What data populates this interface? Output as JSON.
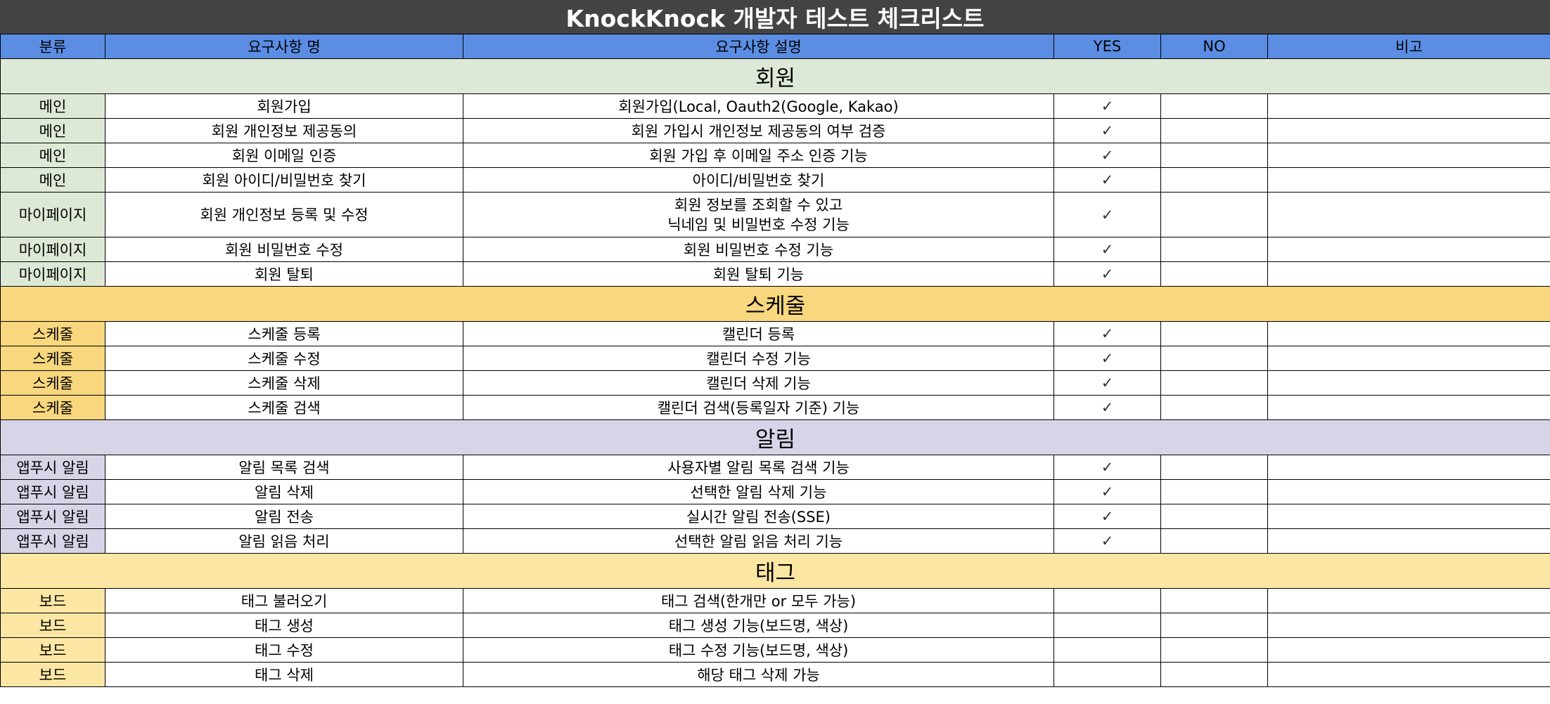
{
  "title": "KnockKnock 개발자 테스트 체크리스트",
  "headers": [
    "분류",
    "요구사항 명",
    "요구사항 설명",
    "YES",
    "NO",
    "비고"
  ],
  "check_mark": "✓",
  "colors": {
    "title_bg": "#434343",
    "header_bg": "#5b8de3",
    "member": "#dde9d6",
    "schedule": "#f8d77e",
    "alarm": "#d8d4e8",
    "tag": "#fbe7a3"
  },
  "sections": [
    {
      "name": "회원",
      "rows": [
        {
          "category": "메인",
          "name": "회원가입",
          "desc": "회원가입(Local, Oauth2(Google, Kakao)",
          "yes": "✓",
          "no": "",
          "note": ""
        },
        {
          "category": "메인",
          "name": "회원 개인정보 제공동의",
          "desc": "회원 가입시 개인정보 제공동의 여부 검증",
          "yes": "✓",
          "no": "",
          "note": ""
        },
        {
          "category": "메인",
          "name": "회원 이메일 인증",
          "desc": "회원 가입 후 이메일 주소 인증 기능",
          "yes": "✓",
          "no": "",
          "note": ""
        },
        {
          "category": "메인",
          "name": "회원 아이디/비밀번호 찾기",
          "desc": "아이디/비밀번호 찾기",
          "yes": "✓",
          "no": "",
          "note": ""
        },
        {
          "category": "마이페이지",
          "name": "회원 개인정보 등록 및 수정",
          "desc": "회원 정보를 조회할 수 있고",
          "desc2": "닉네임 및 비밀번호 수정 기능",
          "yes": "✓",
          "no": "",
          "note": ""
        },
        {
          "category": "마이페이지",
          "name": "회원 비밀번호 수정",
          "desc": "회원 비밀번호 수정 기능",
          "yes": "✓",
          "no": "",
          "note": ""
        },
        {
          "category": "마이페이지",
          "name": "회원 탈퇴",
          "desc": "회원  탈퇴 기능",
          "yes": "✓",
          "no": "",
          "note": ""
        }
      ]
    },
    {
      "name": "스케줄",
      "rows": [
        {
          "category": "스케줄",
          "name": "스케줄 등록",
          "desc": "캘린더 등록",
          "yes": "✓",
          "no": "",
          "note": ""
        },
        {
          "category": "스케줄",
          "name": "스케줄 수정",
          "desc": "캘린더 수정 기능",
          "yes": "✓",
          "no": "",
          "note": ""
        },
        {
          "category": "스케줄",
          "name": "스케줄 삭제",
          "desc": "캘린더 삭제 기능",
          "yes": "✓",
          "no": "",
          "note": ""
        },
        {
          "category": "스케줄",
          "name": "스케줄 검색",
          "desc": "캘린더 검색(등록일자 기준) 기능",
          "yes": "✓",
          "no": "",
          "note": ""
        }
      ]
    },
    {
      "name": "알림",
      "rows": [
        {
          "category": "앱푸시 알림",
          "name": "알림 목록 검색",
          "desc": "사용자별 알림 목록 검색 기능",
          "yes": "✓",
          "no": "",
          "note": ""
        },
        {
          "category": "앱푸시 알림",
          "name": "알림 삭제",
          "desc": "선택한 알림 삭제 기능",
          "yes": "✓",
          "no": "",
          "note": ""
        },
        {
          "category": "앱푸시 알림",
          "name": "알림 전송",
          "desc": "실시간 알림 전송(SSE)",
          "yes": "✓",
          "no": "",
          "note": ""
        },
        {
          "category": "앱푸시 알림",
          "name": "알림 읽음 처리",
          "desc": "선택한 알림 읽음 처리 기능",
          "yes": "✓",
          "no": "",
          "note": ""
        }
      ]
    },
    {
      "name": "태그",
      "rows": [
        {
          "category": "보드",
          "name": "태그 불러오기",
          "desc": "태그 검색(한개만 or 모두 가능)",
          "yes": "",
          "no": "",
          "note": ""
        },
        {
          "category": "보드",
          "name": "태그 생성",
          "desc": "태그 생성 기능(보드명, 색상)",
          "yes": "",
          "no": "",
          "note": ""
        },
        {
          "category": "보드",
          "name": "태그 수정",
          "desc": "태그 수정 기능(보드명, 색상)",
          "yes": "",
          "no": "",
          "note": ""
        },
        {
          "category": "보드",
          "name": "태그 삭제",
          "desc": "해당 태그 삭제 가능",
          "yes": "",
          "no": "",
          "note": ""
        }
      ]
    }
  ]
}
